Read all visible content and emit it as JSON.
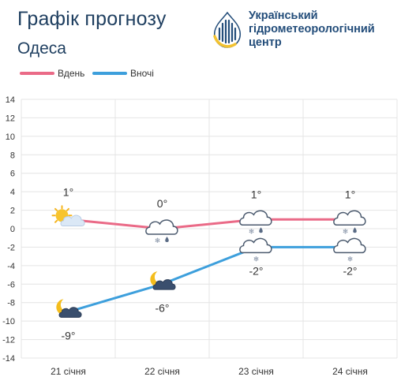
{
  "header": {
    "title": "Графік прогнозу",
    "city": "Одеса"
  },
  "org": {
    "line1": "Український",
    "line2": "гідрометеорологічний",
    "line3": "центр",
    "logo_icon": "ukrhydromet-logo-icon"
  },
  "colors": {
    "day": "#ea6a87",
    "night": "#3d9fdc",
    "grid": "#e4e4e4",
    "axis_text": "#333333",
    "title": "#1f3f60",
    "org": "#234d7a"
  },
  "chart_data": {
    "type": "line",
    "categories": [
      "21 січня",
      "22 січня",
      "23 січня",
      "24 січня"
    ],
    "series": [
      {
        "name": "Вдень",
        "values": [
          1,
          0,
          1,
          1
        ],
        "labels": [
          "1°",
          "0°",
          "1°",
          "1°"
        ],
        "icons": [
          "sun-behind-cloud-icon",
          "cloud-snow-rain-icon",
          "cloud-snow-rain-icon",
          "cloud-snow-rain-icon"
        ]
      },
      {
        "name": "Вночі",
        "values": [
          -9,
          -6,
          -2,
          -2
        ],
        "labels": [
          "-9°",
          "-6°",
          "-2°",
          "-2°"
        ],
        "icons": [
          "moon-behind-cloud-icon",
          "moon-behind-cloud-icon",
          "cloud-snow-icon",
          "cloud-snow-icon"
        ]
      }
    ],
    "ylim": [
      -14,
      14
    ],
    "yticks": [
      14,
      12,
      10,
      8,
      6,
      4,
      2,
      0,
      -2,
      -4,
      -6,
      -8,
      -10,
      -12,
      -14
    ],
    "ytick_labels": [
      "14",
      "12",
      "10",
      "8",
      "6",
      "4",
      "2",
      "0",
      "-2",
      "-4",
      "-6",
      "-8",
      "-10",
      "-12",
      "-14"
    ],
    "grid": true,
    "legend": "top-left"
  }
}
